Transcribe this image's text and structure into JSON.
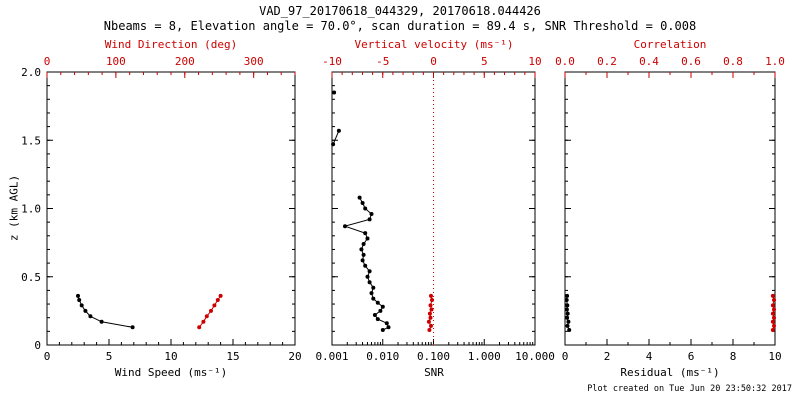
{
  "header": {
    "title": "VAD_97_20170618_044329, 20170618.044426",
    "subtitle": "Nbeams = 8, Elevation angle = 70.0°, scan duration = 89.4 s, SNR Threshold = 0.008"
  },
  "footer": {
    "created": "Plot created on Tue Jun 20 23:50:32 2017"
  },
  "colors": {
    "axis": "#000000",
    "accent": "#cc0000",
    "background": "#ffffff"
  },
  "y_axis": {
    "label": "z (km AGL)",
    "min": 0,
    "max": 2.0,
    "major": [
      0,
      0.5,
      1.0,
      1.5,
      2.0
    ],
    "tick_labels": [
      "0",
      "0.5",
      "1.0",
      "1.5",
      "2.0"
    ],
    "minor_step": 0.1
  },
  "chart_data": [
    {
      "name": "wind-panel",
      "type": "line",
      "x_bottom": {
        "label": "Wind Speed (ms⁻¹)",
        "scale": "linear",
        "min": 0,
        "max": 20,
        "major": [
          0,
          5,
          10,
          15,
          20
        ],
        "tick_labels": [
          "0",
          "5",
          "10",
          "15",
          "20"
        ],
        "minor_step": 1,
        "color": "black"
      },
      "x_top": {
        "label": "Wind Direction (deg)",
        "scale": "linear",
        "min": 0,
        "max": 360,
        "major": [
          0,
          100,
          200,
          300
        ],
        "tick_labels": [
          "0",
          "100",
          "200",
          "300"
        ],
        "minor_step": 20,
        "color": "red"
      },
      "series": [
        {
          "name": "wind-speed",
          "x_axis": "bottom",
          "color": "black",
          "line": true,
          "marker": true,
          "z": [
            0.13,
            0.17,
            0.21,
            0.25,
            0.29,
            0.33,
            0.36
          ],
          "values": [
            6.9,
            4.4,
            3.5,
            3.1,
            2.8,
            2.6,
            2.5
          ]
        },
        {
          "name": "wind-direction",
          "x_axis": "top",
          "color": "red",
          "line": true,
          "marker": true,
          "z": [
            0.13,
            0.17,
            0.21,
            0.25,
            0.29,
            0.33,
            0.36
          ],
          "values": [
            221,
            227,
            232,
            238,
            243,
            248,
            252
          ]
        }
      ]
    },
    {
      "name": "snr-panel",
      "type": "line",
      "x_bottom": {
        "label": "SNR",
        "scale": "log",
        "min": 0.001,
        "max": 10,
        "major": [
          0.001,
          0.01,
          0.1,
          1,
          10
        ],
        "tick_labels": [
          "0.001",
          "0.010",
          "0.100",
          "1.000",
          "10.000"
        ],
        "color": "black"
      },
      "x_top": {
        "label": "Vertical velocity (ms⁻¹)",
        "scale": "linear",
        "min": -10,
        "max": 10,
        "major": [
          -10,
          -5,
          0,
          5,
          10
        ],
        "tick_labels": [
          "-10",
          "-5",
          "0",
          "5",
          "10"
        ],
        "minor_step": 1,
        "color": "red"
      },
      "ref_line": {
        "x_axis": "top",
        "value": 0,
        "color": "red",
        "dash": "1,3"
      },
      "series": [
        {
          "name": "snr-profile",
          "x_axis": "bottom",
          "color": "black",
          "line": true,
          "marker": true,
          "z": [
            0.11,
            0.13,
            0.16,
            0.19,
            0.22,
            0.25,
            0.28,
            0.31,
            0.34,
            0.38,
            0.42,
            0.46,
            0.5,
            0.54,
            0.58,
            0.62,
            0.66,
            0.7,
            0.74,
            0.78,
            0.82,
            0.87,
            0.92,
            0.96,
            1.0,
            1.04,
            1.08
          ],
          "values": [
            0.01,
            0.013,
            0.012,
            0.008,
            0.007,
            0.009,
            0.01,
            0.008,
            0.0065,
            0.006,
            0.0065,
            0.0055,
            0.005,
            0.0055,
            0.0045,
            0.004,
            0.0042,
            0.0038,
            0.0042,
            0.005,
            0.0045,
            0.0018,
            0.0055,
            0.006,
            0.0045,
            0.004,
            0.0035
          ]
        },
        {
          "name": "snr-upper-segment",
          "x_axis": "bottom",
          "color": "black",
          "line": true,
          "marker": true,
          "z": [
            1.47,
            1.57
          ],
          "values": [
            0.00105,
            0.00137
          ]
        },
        {
          "name": "snr-top-point",
          "x_axis": "bottom",
          "color": "black",
          "line": false,
          "marker": true,
          "z": [
            1.85
          ],
          "values": [
            0.0011
          ]
        },
        {
          "name": "vertical-velocity",
          "x_axis": "top",
          "color": "red",
          "line": true,
          "marker": true,
          "z": [
            0.11,
            0.14,
            0.17,
            0.2,
            0.23,
            0.26,
            0.29,
            0.33,
            0.36
          ],
          "values": [
            -0.4,
            -0.25,
            -0.45,
            -0.3,
            -0.35,
            -0.2,
            -0.3,
            -0.15,
            -0.25
          ]
        }
      ]
    },
    {
      "name": "residual-panel",
      "type": "line",
      "x_bottom": {
        "label": "Residual (ms⁻¹)",
        "scale": "linear",
        "min": 0,
        "max": 10,
        "major": [
          0,
          2,
          4,
          6,
          8,
          10
        ],
        "tick_labels": [
          "0",
          "2",
          "4",
          "6",
          "8",
          "10"
        ],
        "minor_step": 1,
        "color": "black"
      },
      "x_top": {
        "label": "Correlation",
        "scale": "linear",
        "min": 0,
        "max": 1,
        "major": [
          0,
          0.2,
          0.4,
          0.6,
          0.8,
          1.0
        ],
        "tick_labels": [
          "0.0",
          "0.2",
          "0.4",
          "0.6",
          "0.8",
          "1.0"
        ],
        "minor_step": 0.1,
        "color": "red"
      },
      "series": [
        {
          "name": "residual",
          "x_axis": "bottom",
          "color": "black",
          "line": true,
          "marker": true,
          "z": [
            0.11,
            0.14,
            0.17,
            0.2,
            0.23,
            0.26,
            0.29,
            0.33,
            0.36
          ],
          "values": [
            0.2,
            0.12,
            0.16,
            0.1,
            0.13,
            0.09,
            0.11,
            0.08,
            0.1
          ]
        },
        {
          "name": "correlation",
          "x_axis": "top",
          "color": "red",
          "line": true,
          "marker": true,
          "z": [
            0.11,
            0.14,
            0.17,
            0.2,
            0.23,
            0.26,
            0.29,
            0.33,
            0.36
          ],
          "values": [
            0.99,
            0.995,
            0.99,
            0.995,
            0.99,
            0.995,
            0.99,
            0.995,
            0.99
          ]
        }
      ]
    }
  ]
}
